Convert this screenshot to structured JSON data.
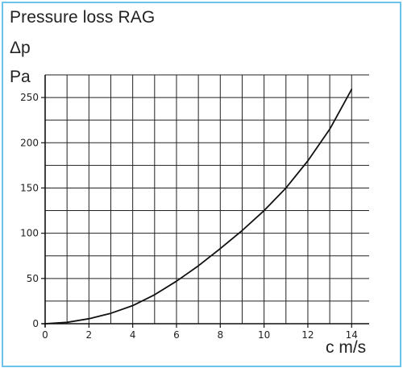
{
  "chart_data": {
    "type": "line",
    "title": "Pressure loss RAG",
    "ylabel_symbol": "Δp",
    "ylabel_unit": "Pa",
    "xlabel": "c m/s",
    "xlim": [
      0,
      14.8
    ],
    "ylim": [
      0,
      275
    ],
    "x_ticks": [
      0,
      2,
      4,
      6,
      8,
      10,
      12,
      14
    ],
    "y_ticks": [
      0,
      50,
      100,
      150,
      200,
      250
    ],
    "grid": true,
    "series": [
      {
        "x": [
          0,
          1,
          2,
          3,
          4,
          5,
          6,
          7,
          8,
          9,
          10,
          11,
          12,
          13,
          14
        ],
        "values": [
          0,
          1.5,
          5.5,
          11.5,
          20,
          32,
          47,
          64,
          83,
          103,
          125,
          150,
          180,
          215,
          259
        ]
      }
    ],
    "line_color": "#111111",
    "grid_color": "#222222",
    "frame_color": "#6ec3ea"
  }
}
